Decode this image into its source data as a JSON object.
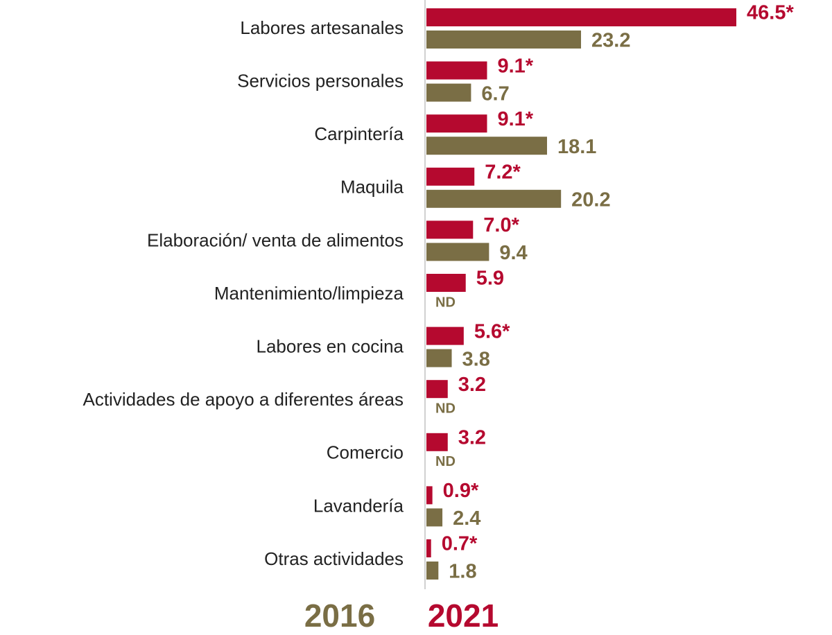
{
  "chart_data": {
    "type": "hbar",
    "categories": [
      "Labores artesanales",
      "Servicios personales",
      "Carpintería",
      "Maquila",
      "Elaboración/ venta de alimentos",
      "Mantenimiento/limpieza",
      "Labores en cocina",
      "Actividades de apoyo a diferentes áreas",
      "Comercio",
      "Lavandería",
      "Otras actividades"
    ],
    "series": [
      {
        "name": "2021",
        "color": "#b5092f",
        "values": [
          46.5,
          9.1,
          9.1,
          7.2,
          7.0,
          5.9,
          5.6,
          3.2,
          3.2,
          0.9,
          0.7
        ],
        "value_labels": [
          "46.5*",
          "9.1*",
          "9.1*",
          "7.2*",
          "7.0*",
          "5.9",
          "5.6*",
          "3.2",
          "3.2",
          "0.9*",
          "0.7*"
        ]
      },
      {
        "name": "2016",
        "color": "#7a6e45",
        "values": [
          23.2,
          6.7,
          18.1,
          20.2,
          9.4,
          null,
          3.8,
          null,
          null,
          2.4,
          1.8
        ],
        "value_labels": [
          "23.2",
          "6.7",
          "18.1",
          "20.2",
          "9.4",
          "ND",
          "3.8",
          "ND",
          "ND",
          "2.4",
          "1.8"
        ]
      }
    ]
  }
}
